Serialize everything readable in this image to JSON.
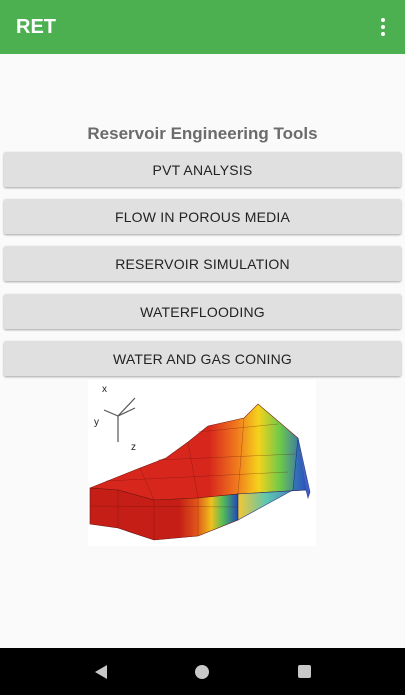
{
  "app_bar": {
    "title": "RET",
    "overflow_icon": "more-vert-icon",
    "color": "#4caf50"
  },
  "main": {
    "heading": "Reservoir Engineering Tools",
    "buttons": [
      {
        "label": "PVT ANALYSIS"
      },
      {
        "label": "FLOW IN POROUS MEDIA"
      },
      {
        "label": "RESERVOIR SIMULATION"
      },
      {
        "label": "WATERFLOODING"
      },
      {
        "label": "WATER AND GAS CONING"
      }
    ],
    "illustration": {
      "axis_labels": {
        "x": "x",
        "y": "y",
        "z": "z"
      }
    }
  },
  "nav_bar": {
    "back_icon": "back-triangle-icon",
    "home_icon": "home-circle-icon",
    "recents_icon": "recents-square-icon"
  }
}
